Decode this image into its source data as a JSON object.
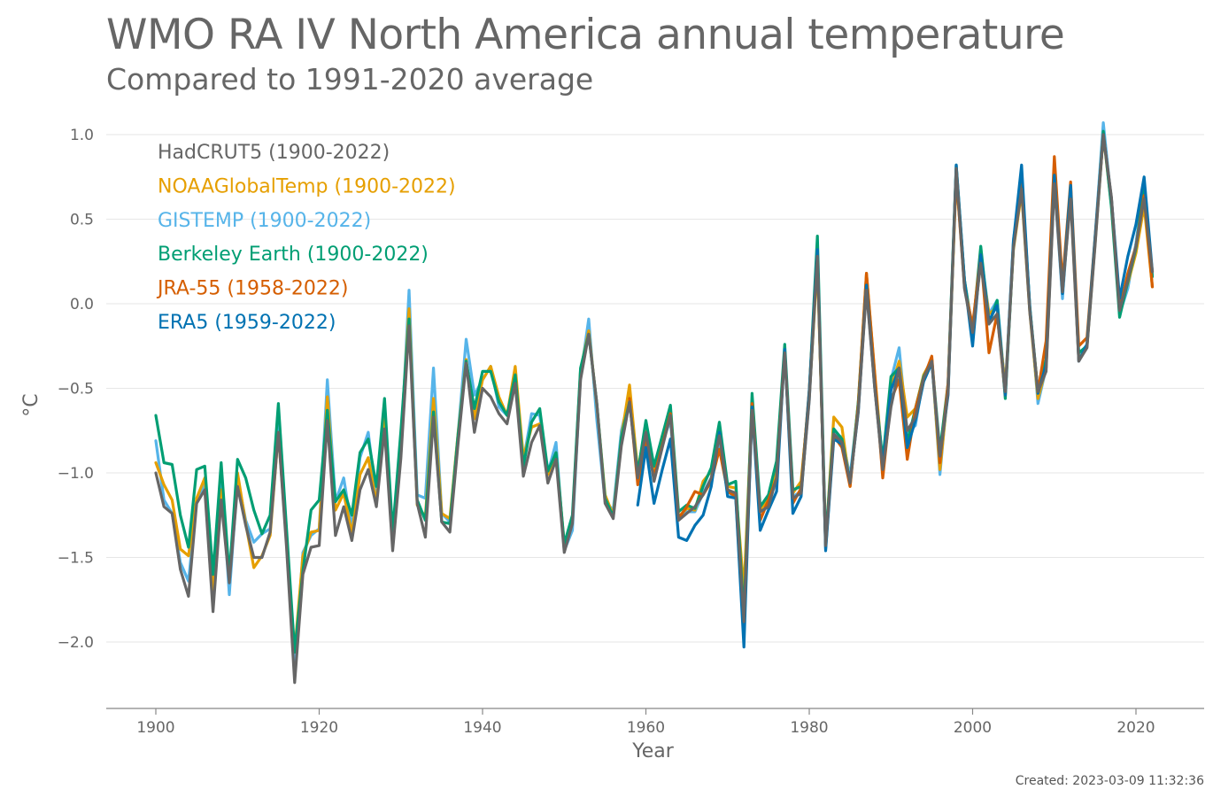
{
  "title": "WMO RA IV North America annual temperature",
  "subtitle": "Compared to 1991-2020 average",
  "created": "Created: 2023-03-09 11:32:36",
  "chart_data": {
    "type": "line",
    "title": "WMO RA IV North America annual temperature",
    "subtitle": "Compared to 1991-2020 average",
    "xlabel": "Year",
    "ylabel": "°C",
    "xlim": [
      1897,
      2025
    ],
    "ylim": [
      -2.4,
      1.1
    ],
    "xticks": [
      1900,
      1920,
      1940,
      1960,
      1980,
      2000,
      2020
    ],
    "yticks": [
      -2.0,
      -1.5,
      -1.0,
      -0.5,
      0.0,
      0.5,
      1.0
    ],
    "ytick_labels": [
      "−2.0",
      "−1.5",
      "−1.0",
      "−0.5",
      "0.0",
      "0.5",
      "1.0"
    ],
    "grid": "horizontal",
    "legend_position": "top-left",
    "series": [
      {
        "name": "GISTEMP (1900-2022)",
        "color": "#56b4e9",
        "start": 1900,
        "values": [
          -0.81,
          -1.16,
          -1.24,
          -1.53,
          -1.64,
          -1.17,
          -1.07,
          -1.77,
          -1.0,
          -1.72,
          -1.03,
          -1.28,
          -1.41,
          -1.36,
          -1.33,
          -0.72,
          -1.4,
          -2.17,
          -1.47,
          -1.37,
          -1.33,
          -0.45,
          -1.17,
          -1.03,
          -1.33,
          -0.91,
          -0.76,
          -1.15,
          -0.59,
          -1.38,
          -0.85,
          0.08,
          -1.13,
          -1.15,
          -0.38,
          -1.24,
          -1.29,
          -0.77,
          -0.21,
          -0.54,
          -0.45,
          -0.37,
          -0.61,
          -0.66,
          -0.43,
          -0.93,
          -0.65,
          -0.66,
          -1.0,
          -0.82,
          -1.46,
          -1.34,
          -0.43,
          -0.09,
          -0.69,
          -1.17,
          -1.22,
          -0.75,
          -0.55,
          -1.03,
          -0.78,
          -1.0,
          -0.82,
          -0.69,
          -1.27,
          -1.23,
          -1.23,
          -1.12,
          -1.03,
          -0.83,
          -1.11,
          -1.15,
          -1.96,
          -0.62,
          -1.23,
          -1.18,
          -1.0,
          -0.27,
          -1.14,
          -1.11,
          -0.57,
          0.3,
          -1.45,
          -0.76,
          -0.79,
          -1.02,
          -0.6,
          0.09,
          -0.47,
          -1.0,
          -0.45,
          -0.26,
          -0.76,
          -0.72,
          -0.43,
          -0.32,
          -1.01,
          -0.48,
          0.8,
          0.13,
          -0.2,
          0.3,
          -0.06,
          0.02,
          -0.51,
          0.38,
          0.7,
          -0.01,
          -0.59,
          -0.38,
          0.73,
          0.03,
          0.68,
          -0.31,
          -0.24,
          0.4,
          1.07,
          0.6,
          -0.06,
          0.09,
          0.36,
          0.72,
          0.17
        ]
      },
      {
        "name": "NOAAGlobalTemp (1900-2022)",
        "color": "#e69f00",
        "start": 1900,
        "values": [
          -0.94,
          -1.07,
          -1.16,
          -1.45,
          -1.49,
          -1.15,
          -1.03,
          -1.72,
          -1.1,
          -1.63,
          -1.0,
          -1.3,
          -1.56,
          -1.49,
          -1.37,
          -0.76,
          -1.41,
          -2.06,
          -1.49,
          -1.35,
          -1.34,
          -0.55,
          -1.22,
          -1.12,
          -1.36,
          -1.01,
          -0.91,
          -1.18,
          -0.63,
          -1.4,
          -0.8,
          -0.03,
          -1.19,
          -1.26,
          -0.56,
          -1.24,
          -1.27,
          -0.77,
          -0.33,
          -0.68,
          -0.45,
          -0.37,
          -0.55,
          -0.66,
          -0.37,
          -0.91,
          -0.73,
          -0.71,
          -1.01,
          -0.88,
          -1.42,
          -1.28,
          -0.39,
          -0.16,
          -0.6,
          -1.13,
          -1.25,
          -0.79,
          -0.48,
          -0.99,
          -0.72,
          -1.0,
          -0.78,
          -0.65,
          -1.26,
          -1.21,
          -1.22,
          -1.05,
          -0.99,
          -0.78,
          -1.08,
          -1.09,
          -1.7,
          -0.6,
          -1.22,
          -1.15,
          -1.0,
          -0.29,
          -1.12,
          -1.05,
          -0.55,
          0.24,
          -1.42,
          -0.67,
          -0.73,
          -1.08,
          -0.58,
          0.18,
          -0.4,
          -0.96,
          -0.5,
          -0.34,
          -0.67,
          -0.62,
          -0.42,
          -0.33,
          -0.98,
          -0.51,
          0.75,
          0.14,
          -0.18,
          0.27,
          -0.06,
          -0.02,
          -0.5,
          0.32,
          0.66,
          -0.05,
          -0.56,
          -0.38,
          0.75,
          0.09,
          0.64,
          -0.33,
          -0.25,
          0.36,
          1.0,
          0.58,
          -0.02,
          0.12,
          0.3,
          0.58,
          0.1
        ]
      },
      {
        "name": "Berkeley Earth (1900-2022)",
        "color": "#009e73",
        "start": 1900,
        "values": [
          -0.66,
          -0.94,
          -0.95,
          -1.25,
          -1.44,
          -0.98,
          -0.96,
          -1.6,
          -0.94,
          -1.61,
          -0.92,
          -1.03,
          -1.22,
          -1.36,
          -1.25,
          -0.59,
          -1.33,
          -2.06,
          -1.58,
          -1.22,
          -1.16,
          -0.63,
          -1.17,
          -1.1,
          -1.25,
          -0.88,
          -0.8,
          -1.08,
          -0.56,
          -1.35,
          -0.75,
          -0.09,
          -1.16,
          -1.28,
          -0.64,
          -1.29,
          -1.3,
          -0.78,
          -0.34,
          -0.62,
          -0.4,
          -0.4,
          -0.58,
          -0.66,
          -0.42,
          -0.96,
          -0.7,
          -0.62,
          -0.99,
          -0.88,
          -1.42,
          -1.25,
          -0.38,
          -0.18,
          -0.59,
          -1.15,
          -1.26,
          -0.79,
          -0.58,
          -1.0,
          -0.69,
          -0.96,
          -0.78,
          -0.6,
          -1.23,
          -1.19,
          -1.21,
          -1.08,
          -0.97,
          -0.7,
          -1.07,
          -1.05,
          -1.85,
          -0.53,
          -1.2,
          -1.13,
          -0.93,
          -0.24,
          -1.1,
          -1.08,
          -0.52,
          0.4,
          -1.4,
          -0.74,
          -0.8,
          -1.06,
          -0.58,
          0.15,
          -0.46,
          -0.93,
          -0.43,
          -0.38,
          -0.82,
          -0.62,
          -0.43,
          -0.33,
          -0.87,
          -0.47,
          0.82,
          0.14,
          -0.16,
          0.34,
          -0.12,
          0.02,
          -0.56,
          0.34,
          0.76,
          -0.02,
          -0.52,
          -0.33,
          0.76,
          0.07,
          0.65,
          -0.29,
          -0.25,
          0.38,
          1.02,
          0.57,
          -0.08,
          0.13,
          0.33,
          0.7,
          0.16
        ]
      },
      {
        "name": "JRA-55 (1958-2022)",
        "color": "#d55e00",
        "start": 1958,
        "values": [
          -0.56,
          -1.07,
          -0.82,
          -1.02,
          -0.84,
          -0.65,
          -1.27,
          -1.2,
          -1.11,
          -1.13,
          -1.05,
          -0.86,
          -1.11,
          -1.14,
          -1.9,
          -0.59,
          -1.28,
          -1.16,
          -1.03,
          -0.28,
          -1.18,
          -1.09,
          -0.51,
          0.3,
          -1.44,
          -0.78,
          -0.85,
          -1.08,
          -0.6,
          0.18,
          -0.41,
          -1.03,
          -0.57,
          -0.45,
          -0.92,
          -0.62,
          -0.44,
          -0.31,
          -0.94,
          -0.47,
          0.76,
          0.1,
          -0.13,
          0.29,
          -0.29,
          -0.06,
          -0.54,
          0.36,
          0.73,
          -0.03,
          -0.52,
          -0.22,
          0.87,
          0.12,
          0.72,
          -0.25,
          -0.2,
          0.4,
          1.0,
          0.62,
          -0.03,
          0.18,
          0.34,
          0.64,
          0.1
        ]
      },
      {
        "name": "ERA5 (1959-2022)",
        "color": "#0072b2",
        "start": 1959,
        "values": [
          -1.19,
          -0.85,
          -1.18,
          -0.98,
          -0.8,
          -1.38,
          -1.4,
          -1.31,
          -1.25,
          -1.08,
          -0.76,
          -1.14,
          -1.15,
          -2.03,
          -0.61,
          -1.34,
          -1.22,
          -1.11,
          -0.27,
          -1.24,
          -1.14,
          -0.52,
          0.32,
          -1.46,
          -0.8,
          -0.83,
          -1.05,
          -0.64,
          0.11,
          -0.49,
          -0.96,
          -0.51,
          -0.38,
          -0.85,
          -0.69,
          -0.46,
          -0.35,
          -0.9,
          -0.54,
          0.82,
          0.14,
          -0.25,
          0.29,
          -0.1,
          -0.01,
          -0.54,
          0.37,
          0.82,
          -0.03,
          -0.53,
          -0.36,
          0.76,
          0.06,
          0.7,
          -0.34,
          -0.24,
          0.39,
          1.0,
          0.62,
          0.03,
          0.28,
          0.47,
          0.75,
          0.19
        ]
      },
      {
        "name": "HadCRUT5 (1900-2022)",
        "color": "#666666",
        "start": 1900,
        "values": [
          -1.0,
          -1.2,
          -1.24,
          -1.57,
          -1.73,
          -1.18,
          -1.1,
          -1.82,
          -1.16,
          -1.65,
          -1.08,
          -1.31,
          -1.5,
          -1.5,
          -1.35,
          -0.76,
          -1.44,
          -2.24,
          -1.6,
          -1.44,
          -1.43,
          -0.69,
          -1.37,
          -1.2,
          -1.4,
          -1.1,
          -0.98,
          -1.2,
          -0.74,
          -1.46,
          -0.91,
          -0.13,
          -1.18,
          -1.38,
          -0.67,
          -1.29,
          -1.35,
          -0.83,
          -0.35,
          -0.76,
          -0.5,
          -0.55,
          -0.65,
          -0.71,
          -0.47,
          -1.02,
          -0.82,
          -0.72,
          -1.06,
          -0.92,
          -1.47,
          -1.3,
          -0.45,
          -0.18,
          -0.59,
          -1.18,
          -1.27,
          -0.84,
          -0.58,
          -1.03,
          -0.76,
          -1.05,
          -0.85,
          -0.66,
          -1.28,
          -1.24,
          -1.2,
          -1.13,
          -1.03,
          -0.78,
          -1.1,
          -1.12,
          -1.88,
          -0.63,
          -1.23,
          -1.2,
          -1.03,
          -0.29,
          -1.15,
          -1.12,
          -0.57,
          0.28,
          -1.43,
          -0.77,
          -0.82,
          -1.06,
          -0.63,
          0.08,
          -0.49,
          -0.98,
          -0.61,
          -0.38,
          -0.75,
          -0.67,
          -0.44,
          -0.34,
          -0.9,
          -0.52,
          0.8,
          0.09,
          -0.17,
          0.24,
          -0.12,
          -0.06,
          -0.52,
          0.33,
          0.68,
          -0.05,
          -0.52,
          -0.4,
          0.71,
          0.07,
          0.62,
          -0.34,
          -0.26,
          0.35,
          1.0,
          0.63,
          -0.04,
          0.14,
          0.34,
          0.62,
          0.19
        ]
      }
    ],
    "legend_order": [
      "HadCRUT5 (1900-2022)",
      "NOAAGlobalTemp (1900-2022)",
      "GISTEMP (1900-2022)",
      "Berkeley Earth (1900-2022)",
      "JRA-55 (1958-2022)",
      "ERA5 (1959-2022)"
    ]
  }
}
